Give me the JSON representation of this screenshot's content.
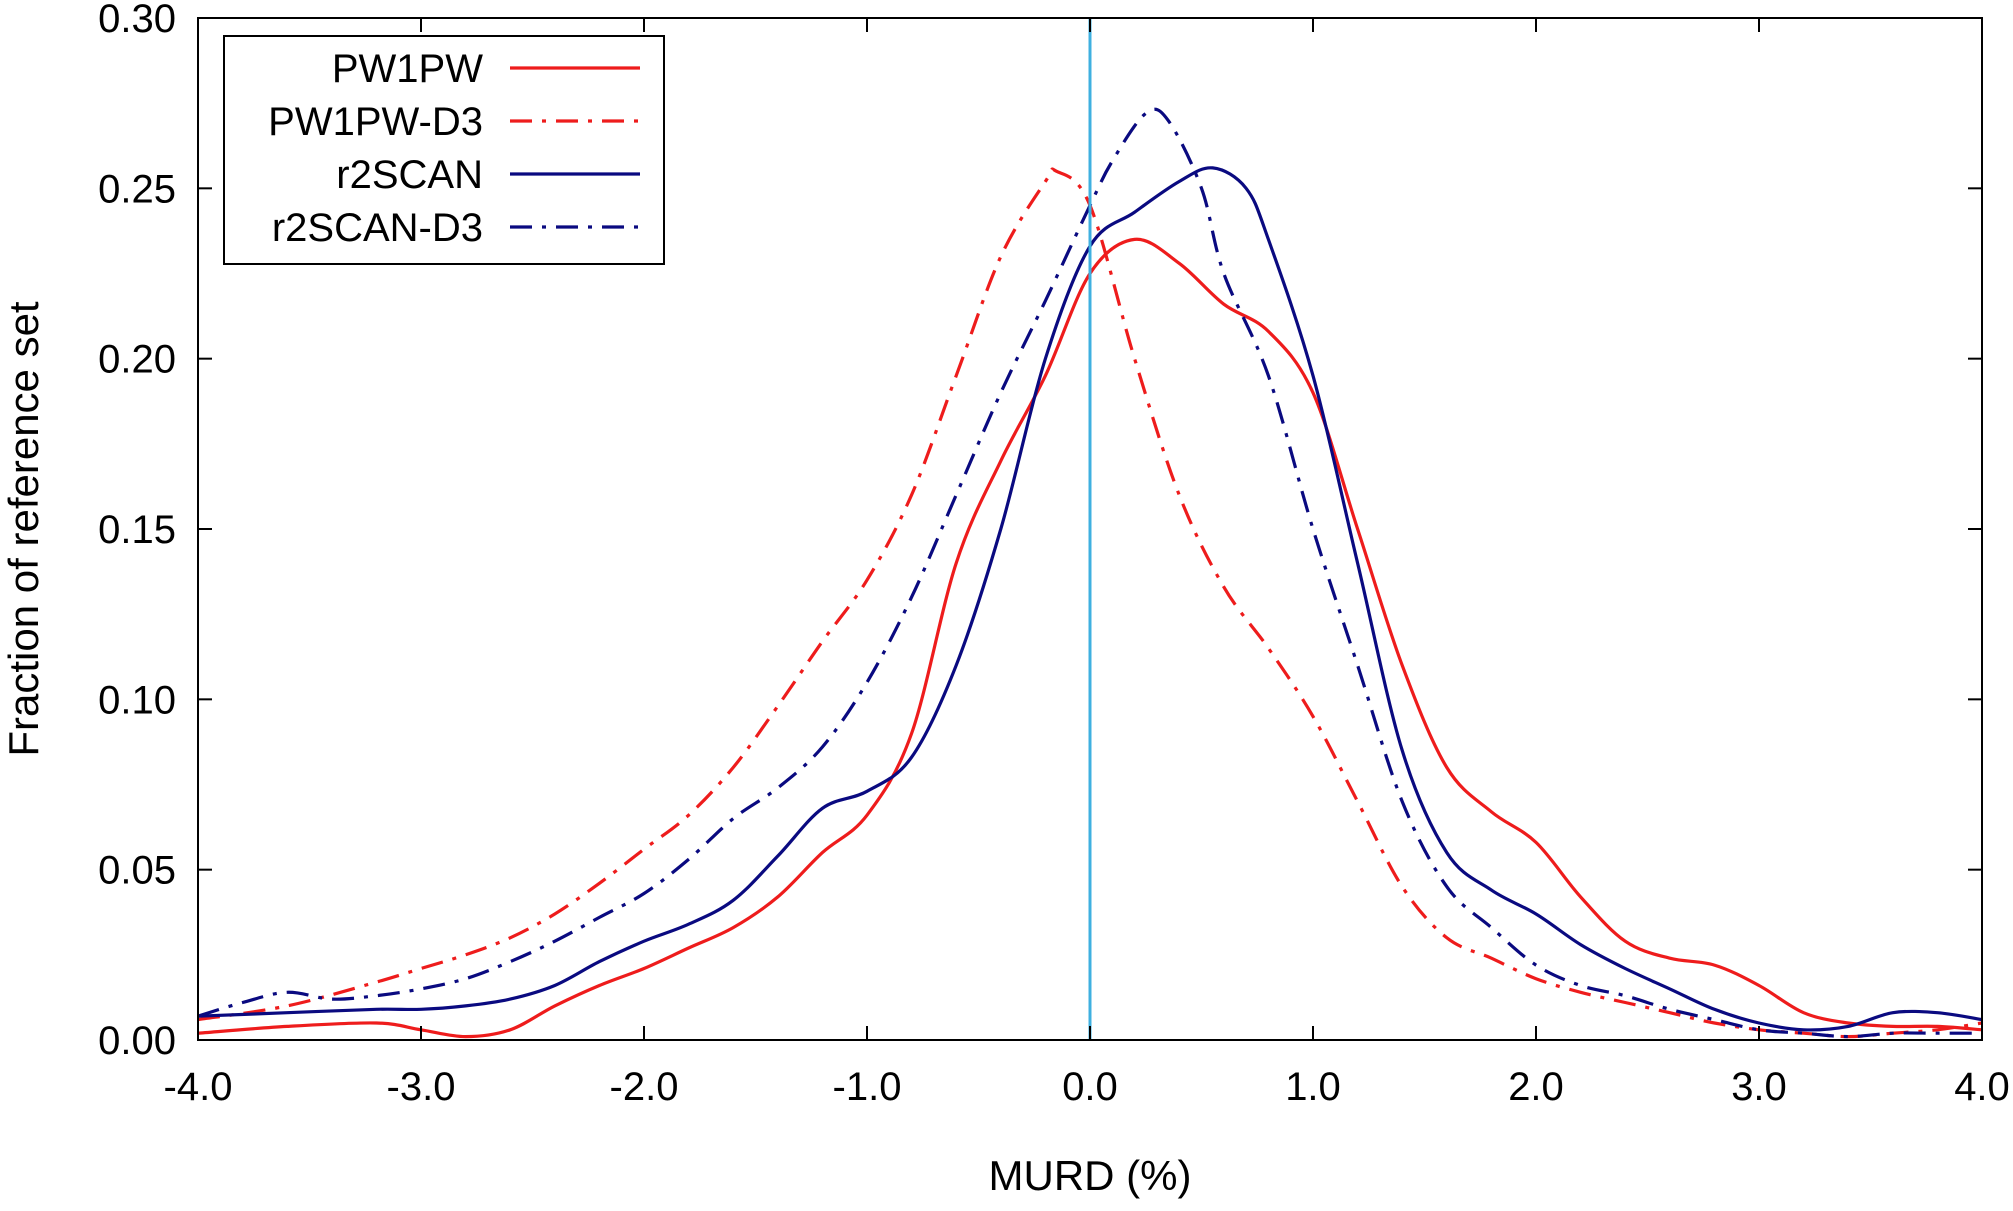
{
  "chart_data": {
    "type": "line",
    "title": "",
    "xlabel": "MURD (%)",
    "ylabel": "Fraction of reference set",
    "xlim": [
      -4.0,
      4.0
    ],
    "ylim": [
      0.0,
      0.3
    ],
    "x_ticks": [
      "-4.0",
      "-3.0",
      "-2.0",
      "-1.0",
      "0.0",
      "1.0",
      "2.0",
      "3.0",
      "4.0"
    ],
    "y_ticks": [
      "0.00",
      "0.05",
      "0.10",
      "0.15",
      "0.20",
      "0.25",
      "0.30"
    ],
    "grid": false,
    "legend_position": "top-left",
    "reference_line": {
      "x": 0.0,
      "color": "#3fb0e0"
    },
    "series": [
      {
        "name": "PW1PW",
        "color": "#ee1c1c",
        "style": "solid",
        "points": [
          [
            -4.0,
            0.002
          ],
          [
            -3.6,
            0.004
          ],
          [
            -3.2,
            0.005
          ],
          [
            -3.0,
            0.003
          ],
          [
            -2.8,
            0.001
          ],
          [
            -2.6,
            0.003
          ],
          [
            -2.4,
            0.01
          ],
          [
            -2.2,
            0.016
          ],
          [
            -2.0,
            0.021
          ],
          [
            -1.8,
            0.027
          ],
          [
            -1.6,
            0.033
          ],
          [
            -1.4,
            0.042
          ],
          [
            -1.2,
            0.055
          ],
          [
            -1.0,
            0.066
          ],
          [
            -0.8,
            0.09
          ],
          [
            -0.6,
            0.14
          ],
          [
            -0.4,
            0.17
          ],
          [
            -0.2,
            0.195
          ],
          [
            0.0,
            0.225
          ],
          [
            0.2,
            0.235
          ],
          [
            0.4,
            0.228
          ],
          [
            0.6,
            0.216
          ],
          [
            0.8,
            0.208
          ],
          [
            1.0,
            0.19
          ],
          [
            1.2,
            0.15
          ],
          [
            1.4,
            0.11
          ],
          [
            1.6,
            0.08
          ],
          [
            1.8,
            0.067
          ],
          [
            2.0,
            0.058
          ],
          [
            2.2,
            0.042
          ],
          [
            2.4,
            0.029
          ],
          [
            2.6,
            0.024
          ],
          [
            2.8,
            0.022
          ],
          [
            3.0,
            0.016
          ],
          [
            3.2,
            0.008
          ],
          [
            3.4,
            0.005
          ],
          [
            3.6,
            0.004
          ],
          [
            3.8,
            0.004
          ],
          [
            4.0,
            0.003
          ]
        ]
      },
      {
        "name": "PW1PW-D3",
        "color": "#ee1c1c",
        "style": "dash-dot",
        "points": [
          [
            -4.0,
            0.006
          ],
          [
            -3.6,
            0.01
          ],
          [
            -3.2,
            0.017
          ],
          [
            -3.0,
            0.021
          ],
          [
            -2.8,
            0.025
          ],
          [
            -2.6,
            0.03
          ],
          [
            -2.4,
            0.037
          ],
          [
            -2.2,
            0.046
          ],
          [
            -2.0,
            0.056
          ],
          [
            -1.8,
            0.066
          ],
          [
            -1.6,
            0.08
          ],
          [
            -1.4,
            0.098
          ],
          [
            -1.2,
            0.117
          ],
          [
            -1.0,
            0.135
          ],
          [
            -0.8,
            0.16
          ],
          [
            -0.6,
            0.195
          ],
          [
            -0.4,
            0.23
          ],
          [
            -0.2,
            0.252
          ],
          [
            -0.15,
            0.255
          ],
          [
            0.0,
            0.245
          ],
          [
            0.2,
            0.2
          ],
          [
            0.4,
            0.16
          ],
          [
            0.6,
            0.133
          ],
          [
            0.8,
            0.115
          ],
          [
            1.0,
            0.095
          ],
          [
            1.2,
            0.07
          ],
          [
            1.4,
            0.045
          ],
          [
            1.6,
            0.03
          ],
          [
            1.8,
            0.024
          ],
          [
            2.0,
            0.018
          ],
          [
            2.2,
            0.014
          ],
          [
            2.4,
            0.011
          ],
          [
            2.6,
            0.008
          ],
          [
            2.8,
            0.005
          ],
          [
            3.0,
            0.003
          ],
          [
            3.2,
            0.002
          ],
          [
            3.4,
            0.001
          ],
          [
            3.6,
            0.002
          ],
          [
            3.8,
            0.003
          ],
          [
            4.0,
            0.005
          ]
        ]
      },
      {
        "name": "r2SCAN",
        "color": "#0a0a80",
        "style": "solid",
        "points": [
          [
            -4.0,
            0.007
          ],
          [
            -3.6,
            0.008
          ],
          [
            -3.2,
            0.009
          ],
          [
            -3.0,
            0.009
          ],
          [
            -2.8,
            0.01
          ],
          [
            -2.6,
            0.012
          ],
          [
            -2.4,
            0.016
          ],
          [
            -2.2,
            0.023
          ],
          [
            -2.0,
            0.029
          ],
          [
            -1.8,
            0.034
          ],
          [
            -1.6,
            0.041
          ],
          [
            -1.4,
            0.054
          ],
          [
            -1.2,
            0.068
          ],
          [
            -1.0,
            0.073
          ],
          [
            -0.8,
            0.083
          ],
          [
            -0.6,
            0.11
          ],
          [
            -0.4,
            0.15
          ],
          [
            -0.2,
            0.2
          ],
          [
            0.0,
            0.233
          ],
          [
            0.2,
            0.243
          ],
          [
            0.4,
            0.252
          ],
          [
            0.55,
            0.256
          ],
          [
            0.7,
            0.25
          ],
          [
            0.8,
            0.235
          ],
          [
            1.0,
            0.195
          ],
          [
            1.2,
            0.14
          ],
          [
            1.4,
            0.085
          ],
          [
            1.6,
            0.055
          ],
          [
            1.8,
            0.044
          ],
          [
            2.0,
            0.037
          ],
          [
            2.2,
            0.028
          ],
          [
            2.4,
            0.021
          ],
          [
            2.6,
            0.015
          ],
          [
            2.8,
            0.009
          ],
          [
            3.0,
            0.005
          ],
          [
            3.2,
            0.003
          ],
          [
            3.4,
            0.004
          ],
          [
            3.6,
            0.008
          ],
          [
            3.8,
            0.008
          ],
          [
            4.0,
            0.006
          ]
        ]
      },
      {
        "name": "r2SCAN-D3",
        "color": "#0a0a80",
        "style": "dash-dot",
        "points": [
          [
            -4.0,
            0.007
          ],
          [
            -3.8,
            0.011
          ],
          [
            -3.6,
            0.014
          ],
          [
            -3.4,
            0.012
          ],
          [
            -3.2,
            0.013
          ],
          [
            -3.0,
            0.015
          ],
          [
            -2.8,
            0.018
          ],
          [
            -2.6,
            0.023
          ],
          [
            -2.4,
            0.029
          ],
          [
            -2.2,
            0.036
          ],
          [
            -2.0,
            0.043
          ],
          [
            -1.8,
            0.053
          ],
          [
            -1.6,
            0.065
          ],
          [
            -1.4,
            0.074
          ],
          [
            -1.2,
            0.086
          ],
          [
            -1.0,
            0.105
          ],
          [
            -0.8,
            0.13
          ],
          [
            -0.6,
            0.16
          ],
          [
            -0.4,
            0.19
          ],
          [
            -0.2,
            0.217
          ],
          [
            0.0,
            0.245
          ],
          [
            0.1,
            0.258
          ],
          [
            0.25,
            0.272
          ],
          [
            0.35,
            0.27
          ],
          [
            0.5,
            0.25
          ],
          [
            0.6,
            0.225
          ],
          [
            0.8,
            0.195
          ],
          [
            1.0,
            0.15
          ],
          [
            1.2,
            0.11
          ],
          [
            1.4,
            0.07
          ],
          [
            1.6,
            0.045
          ],
          [
            1.8,
            0.033
          ],
          [
            2.0,
            0.022
          ],
          [
            2.2,
            0.016
          ],
          [
            2.4,
            0.013
          ],
          [
            2.6,
            0.009
          ],
          [
            2.8,
            0.006
          ],
          [
            3.0,
            0.003
          ],
          [
            3.2,
            0.002
          ],
          [
            3.4,
            0.001
          ],
          [
            3.6,
            0.002
          ],
          [
            3.8,
            0.002
          ],
          [
            4.0,
            0.002
          ]
        ]
      }
    ]
  }
}
